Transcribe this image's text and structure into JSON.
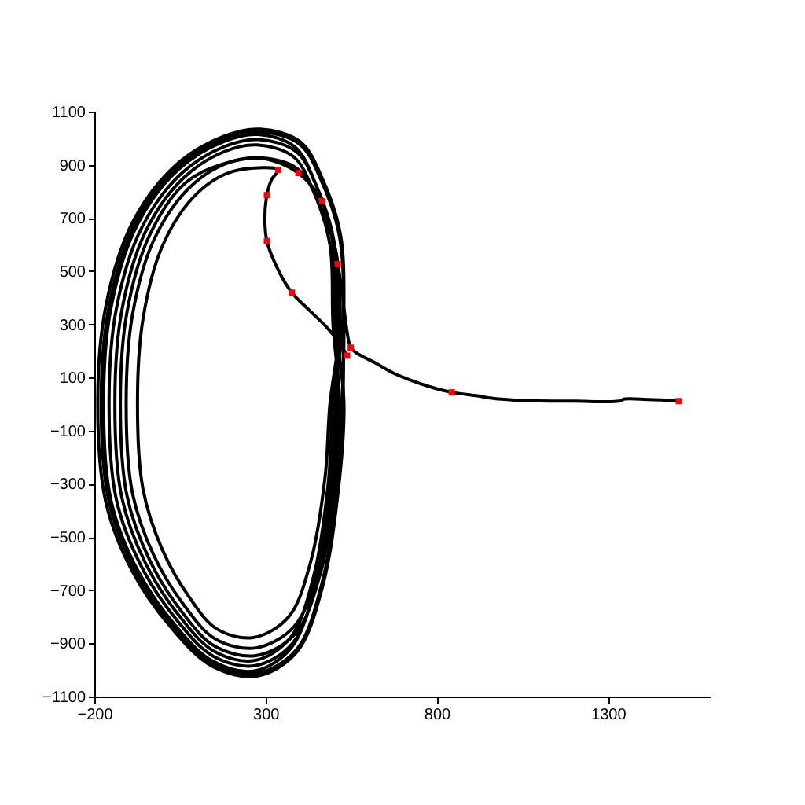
{
  "chart_data": {
    "type": "line",
    "xlim": [
      -200,
      1600
    ],
    "ylim": [
      -1100,
      1100
    ],
    "xticks": [
      -200,
      300,
      800,
      1300
    ],
    "yticks": [
      -1100,
      -900,
      -700,
      -500,
      -300,
      -100,
      100,
      300,
      500,
      700,
      900,
      1100
    ],
    "series": [
      {
        "color": "#000000",
        "x": [
          1507,
          1471,
          1420,
          1349,
          1333,
          1200,
          1100,
          1026,
          960,
          919,
          844,
          780,
          719,
          673,
          620,
          566,
          549,
          535,
          524,
          511,
          492,
          465,
          432,
          396,
          345,
          284,
          181,
          67,
          -38,
          -105,
          -124,
          -105,
          -38,
          57,
          152,
          273,
          388,
          460,
          507,
          523,
          529,
          519,
          466,
          402,
          285,
          178,
          40,
          -86,
          -166,
          -190,
          -166,
          -86,
          29,
          144,
          275,
          391,
          466,
          513,
          529,
          504,
          494,
          445,
          386,
          278,
          179,
          47,
          -74,
          -151,
          -173,
          -151,
          -74,
          36,
          146,
          268,
          376,
          445,
          489,
          504,
          510,
          500,
          450,
          390,
          280,
          180,
          54,
          -62,
          -136,
          -157,
          -136,
          -62,
          43,
          148,
          270,
          380,
          450,
          495,
          510,
          510
        ],
        "values": [
          11,
          15,
          17,
          19,
          11,
          11,
          12,
          15,
          22,
          31,
          44,
          65,
          92,
          117,
          155,
          192,
          212,
          300,
          420,
          526,
          650,
          763,
          825,
          869,
          905,
          925,
          905,
          833,
          637,
          343,
          0,
          -343,
          -588,
          -784,
          -911,
          -946,
          -862,
          -637,
          -294,
          0,
          318,
          636,
          848,
          986,
          1034,
          1007,
          901,
          689,
          371,
          0,
          -371,
          -636,
          -848,
          -986,
          -1023,
          -933,
          -689,
          -318,
          0,
          312,
          624,
          832,
          967,
          1014,
          988,
          884,
          676,
          364,
          0,
          -364,
          -624,
          -832,
          -967,
          -1004,
          -915,
          -676,
          -312,
          0,
          306,
          612,
          816,
          949,
          995,
          969,
          867,
          663,
          357,
          0,
          -357,
          -612,
          -816,
          -949,
          -984,
          -898,
          -663,
          -306,
          0,
          300
        ]
      },
      {
        "color": "#000000",
        "x": [
          538,
          510,
          474,
          430,
          377,
          335,
          304,
          298,
          304,
          318,
          337,
          290,
          182,
          86,
          -2,
          -58,
          -74,
          -58,
          -2,
          78,
          158,
          264,
          367,
          432,
          474,
          488,
          516,
          506,
          455,
          394,
          282,
          181,
          73,
          -26,
          -89,
          -107,
          -89,
          -26,
          64,
          154,
          272,
          384,
          455,
          501,
          516,
          497,
          488,
          440,
          382,
          276,
          180,
          60,
          -50,
          -120,
          -140,
          -120,
          -50,
          50,
          150,
          267,
          372,
          440,
          483,
          497,
          526,
          516,
          463,
          400,
          285,
          179,
          44,
          -79,
          -157,
          -180,
          -157,
          -79,
          33,
          145,
          274,
          390,
          463,
          510,
          526,
          526
        ],
        "values": [
          182,
          240,
          295,
          350,
          419,
          510,
          613,
          700,
          786,
          845,
          881,
          889,
          865,
          774,
          592,
          319,
          0,
          -319,
          -546,
          -728,
          -846,
          -878,
          -801,
          -592,
          -273,
          0,
          285,
          570,
          760,
          884,
          926,
          903,
          808,
          618,
          333,
          0,
          -333,
          -570,
          -760,
          -884,
          -917,
          -836,
          -618,
          -285,
          0,
          300,
          600,
          800,
          930,
          975,
          950,
          850,
          650,
          350,
          0,
          -350,
          -600,
          -800,
          -930,
          -965,
          -880,
          -650,
          -300,
          0,
          315,
          630,
          840,
          977,
          1024,
          998,
          893,
          683,
          368,
          0,
          -368,
          -630,
          -840,
          -977,
          -1013,
          -924,
          -683,
          -315,
          0,
          315
        ]
      },
      {
        "type": "scatter",
        "color": "#ff0000",
        "marker": "square",
        "x": [
          1507,
          844,
          549,
          511,
          465,
          396,
          538,
          377,
          304,
          304,
          337
        ],
        "values": [
          11,
          44,
          212,
          526,
          763,
          869,
          182,
          419,
          613,
          786,
          881
        ]
      }
    ]
  }
}
